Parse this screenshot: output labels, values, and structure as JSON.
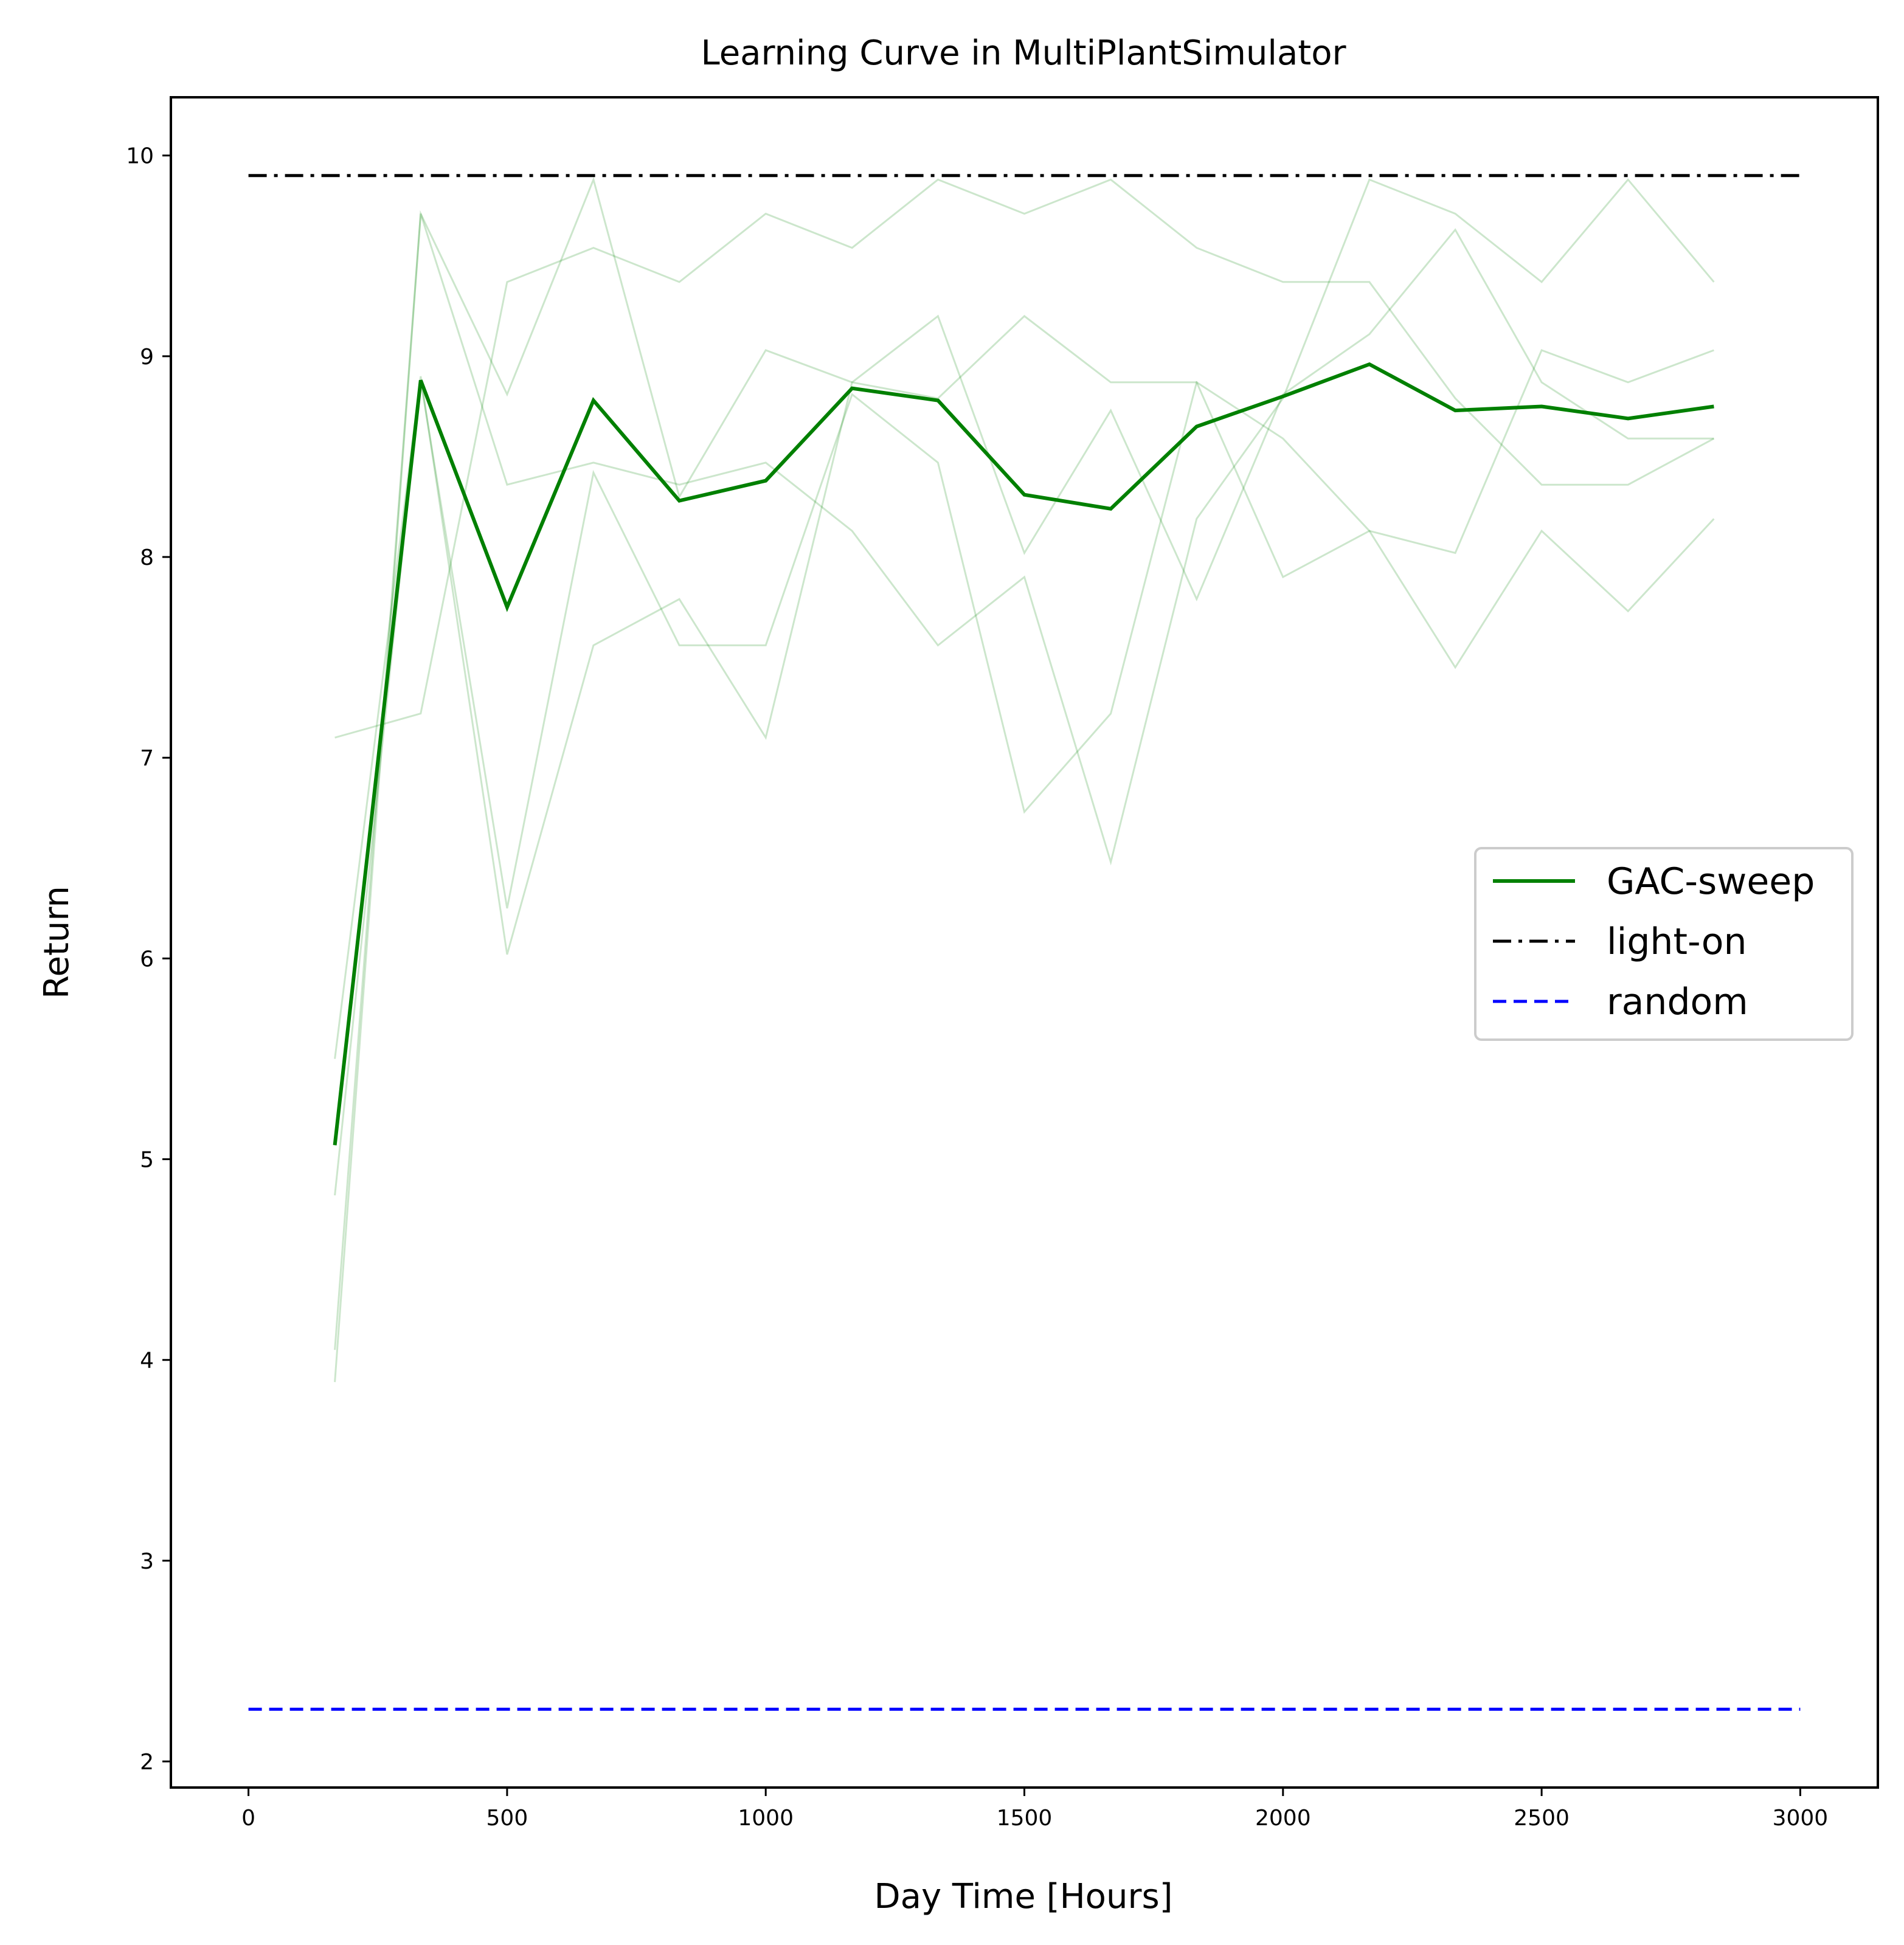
{
  "chart_data": {
    "type": "line",
    "title": "Learning Curve in MultiPlantSimulator",
    "xlabel": "Day Time [Hours]",
    "ylabel": "Return",
    "xlim": [
      -150,
      3150
    ],
    "ylim": [
      1.87,
      10.29
    ],
    "xticks": [
      0,
      500,
      1000,
      1500,
      2000,
      2500,
      3000
    ],
    "yticks": [
      2,
      3,
      4,
      5,
      6,
      7,
      8,
      9,
      10
    ],
    "grid": false,
    "legend_position": "right",
    "series": [
      {
        "name": "GAC-sweep",
        "color": "#008000",
        "style": "solid",
        "x": [
          167,
          333,
          500,
          667,
          833,
          1000,
          1167,
          1333,
          1500,
          1667,
          1833,
          2000,
          2167,
          2333,
          2500,
          2667,
          2833
        ],
        "y": [
          5.07,
          8.88,
          7.75,
          8.78,
          8.28,
          8.38,
          8.84,
          8.78,
          8.31,
          8.24,
          8.65,
          8.8,
          8.96,
          8.73,
          8.75,
          8.69,
          8.75
        ]
      },
      {
        "name": "light-on",
        "color": "#000000",
        "style": "dashdot",
        "x": [
          0,
          3000
        ],
        "y": [
          9.9,
          9.9
        ]
      },
      {
        "name": "random",
        "color": "#0000ff",
        "style": "dashed",
        "x": [
          0,
          3000
        ],
        "y": [
          2.26,
          2.26
        ]
      }
    ],
    "individual_runs": {
      "color": "#008000",
      "opacity": 0.2,
      "x": [
        167,
        333,
        500,
        667,
        833,
        1000,
        1167,
        1333,
        1500,
        1667,
        1833,
        2000,
        2167,
        2333,
        2500,
        2667,
        2833
      ],
      "runs": [
        [
          7.1,
          7.22,
          9.37,
          9.54,
          9.37,
          9.71,
          9.54,
          9.88,
          9.71,
          9.88,
          9.54,
          9.37,
          9.37,
          8.79,
          8.36,
          8.36,
          8.59
        ],
        [
          4.05,
          9.71,
          8.36,
          8.47,
          8.36,
          8.47,
          8.13,
          7.56,
          7.9,
          6.48,
          8.19,
          8.79,
          9.88,
          9.71,
          9.37,
          9.88,
          9.37
        ],
        [
          4.82,
          8.88,
          6.25,
          8.42,
          7.56,
          7.56,
          8.81,
          8.47,
          6.73,
          7.22,
          8.87,
          8.59,
          8.13,
          7.45,
          8.13,
          7.73,
          8.19
        ],
        [
          3.89,
          9.71,
          8.81,
          9.88,
          8.3,
          9.03,
          8.87,
          9.2,
          8.02,
          8.73,
          7.79,
          8.81,
          9.11,
          9.63,
          8.87,
          8.59,
          8.59
        ],
        [
          5.5,
          8.9,
          6.02,
          7.56,
          7.79,
          7.1,
          8.87,
          8.79,
          9.2,
          8.87,
          8.87,
          7.9,
          8.13,
          8.02,
          9.03,
          8.87,
          9.03
        ]
      ]
    }
  }
}
